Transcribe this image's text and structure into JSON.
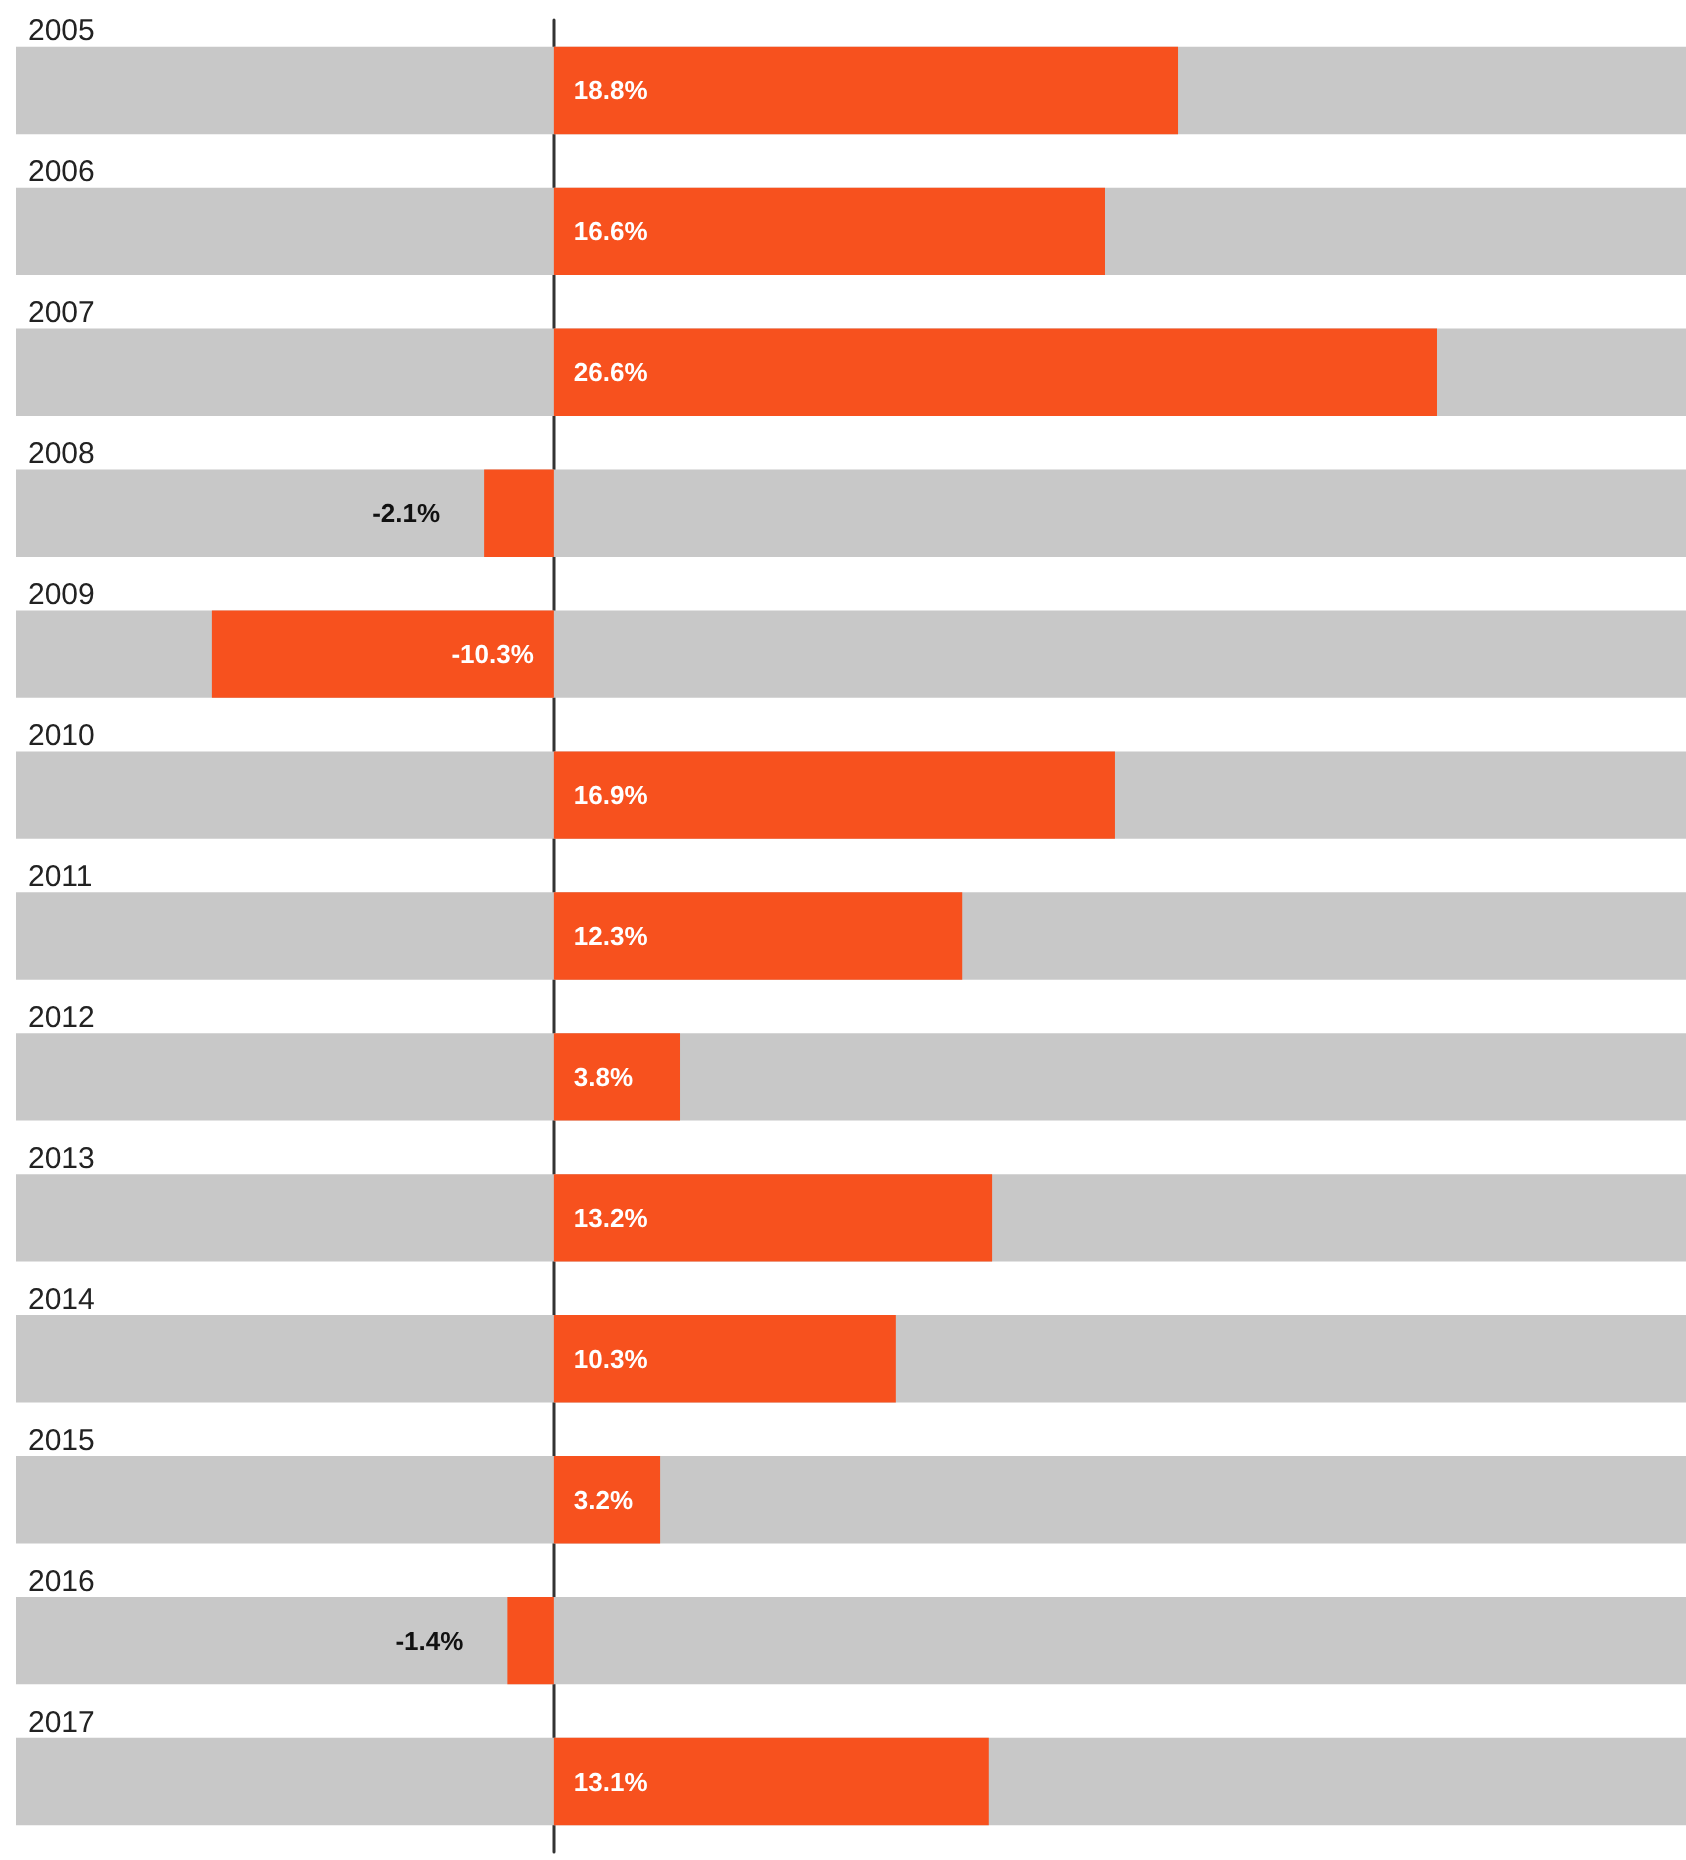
{
  "chart_data": {
    "type": "bar",
    "orientation": "horizontal",
    "categories": [
      "2005",
      "2006",
      "2007",
      "2008",
      "2009",
      "2010",
      "2011",
      "2012",
      "2013",
      "2014",
      "2015",
      "2016",
      "2017"
    ],
    "values": [
      18.8,
      16.6,
      26.6,
      -2.1,
      -10.3,
      16.9,
      12.3,
      3.8,
      13.2,
      10.3,
      3.2,
      -1.4,
      13.1
    ],
    "value_labels": [
      "18.8%",
      "16.6%",
      "26.6%",
      "-2.1%",
      "-10.3%",
      "16.9%",
      "12.3%",
      "3.8%",
      "13.2%",
      "10.3%",
      "3.2%",
      "-1.4%",
      "13.1%"
    ],
    "color": "#f7511e",
    "xlim": [
      -16.2,
      34.1
    ],
    "tick_labels": "y",
    "grid": false
  }
}
